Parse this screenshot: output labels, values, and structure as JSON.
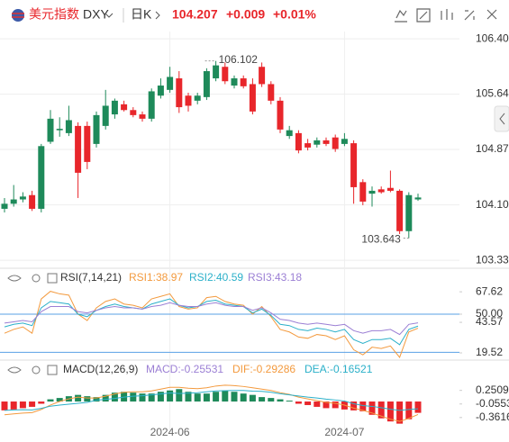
{
  "header": {
    "name": "美元指数",
    "symbol": "DXY",
    "period": "日K",
    "price": "104.207",
    "change": "+0.009",
    "change_pct": "+0.01%"
  },
  "chart_data": [
    {
      "type": "candlestick",
      "categories": [
        null,
        null,
        null,
        null,
        null,
        null,
        null,
        null,
        null,
        null,
        null,
        null,
        null,
        null,
        null,
        null,
        null,
        null,
        "2024-06",
        null,
        null,
        null,
        null,
        null,
        null,
        null,
        null,
        null,
        null,
        null,
        null,
        null,
        null,
        null,
        null,
        null,
        null,
        "2024-07",
        null,
        null,
        null,
        null,
        null,
        null,
        null,
        null
      ],
      "open": [
        104.05,
        104.12,
        104.18,
        104.24,
        104.05,
        104.98,
        105.14,
        105.1,
        105.2,
        105.2,
        104.95,
        105.2,
        105.36,
        105.5,
        105.42,
        105.36,
        105.3,
        105.62,
        105.7,
        105.86,
        105.62,
        105.55,
        105.6,
        105.86,
        106.02,
        105.76,
        105.86,
        105.78,
        106.02,
        105.78,
        105.55,
        105.06,
        105.1,
        104.96,
        104.94,
        105.0,
        105.04,
        104.95,
        104.96,
        104.42,
        104.26,
        104.32,
        104.34,
        104.3,
        103.74,
        104.18
      ],
      "high": [
        104.2,
        104.38,
        104.28,
        104.3,
        104.95,
        105.42,
        105.32,
        105.48,
        105.25,
        105.26,
        105.4,
        105.7,
        105.58,
        105.55,
        105.46,
        105.4,
        105.72,
        105.86,
        106.02,
        105.96,
        105.66,
        105.66,
        106.0,
        106.102,
        106.08,
        105.9,
        105.9,
        105.86,
        106.08,
        105.82,
        105.6,
        105.2,
        105.14,
        105.02,
        105.04,
        105.04,
        105.08,
        105.1,
        105.0,
        104.46,
        104.36,
        104.36,
        104.58,
        104.32,
        104.28,
        104.26
      ],
      "low": [
        104.0,
        104.08,
        104.14,
        104.02,
        104.0,
        104.95,
        105.05,
        105.06,
        104.2,
        104.6,
        104.9,
        105.15,
        105.3,
        105.4,
        105.32,
        105.26,
        105.26,
        105.58,
        105.66,
        105.38,
        105.4,
        105.5,
        105.56,
        105.82,
        105.78,
        105.72,
        105.72,
        105.36,
        105.74,
        105.5,
        105.1,
        105.02,
        104.82,
        104.86,
        104.9,
        104.92,
        104.84,
        104.92,
        104.12,
        104.1,
        104.08,
        104.26,
        104.28,
        103.7,
        103.643,
        104.16
      ],
      "close": [
        104.12,
        104.18,
        104.22,
        104.05,
        104.92,
        105.3,
        105.16,
        105.28,
        104.55,
        104.7,
        105.35,
        105.48,
        105.55,
        105.42,
        105.35,
        105.3,
        105.68,
        105.76,
        105.88,
        105.46,
        105.48,
        105.62,
        105.96,
        106.04,
        105.82,
        105.86,
        105.75,
        105.4,
        105.78,
        105.55,
        105.15,
        105.14,
        104.86,
        104.9,
        105.0,
        104.95,
        104.88,
        105.02,
        104.35,
        104.15,
        104.3,
        104.28,
        104.3,
        103.74,
        104.24,
        104.207
      ],
      "up_color": "#1e8a5a",
      "down_color": "#e8262b",
      "ylim": [
        103.25,
        106.51
      ],
      "yticks": [
        106.409,
        105.641,
        104.873,
        104.104,
        103.336
      ],
      "grid": true,
      "max_label": "106.102",
      "min_label": "103.643"
    },
    {
      "type": "line",
      "title": "RSI(7,14,21)",
      "series": [
        {
          "name": "RSI1:38.97",
          "color": "#f39a3e",
          "values": [
            35,
            38,
            40,
            35,
            62,
            68,
            66,
            65,
            50,
            45,
            55,
            60,
            62,
            58,
            57,
            55,
            62,
            64,
            66,
            56,
            54,
            55,
            63,
            64,
            60,
            58,
            57,
            50,
            56,
            48,
            38,
            36,
            32,
            31,
            34,
            33,
            30,
            33,
            22,
            18,
            24,
            23,
            25,
            16,
            36,
            38.97
          ]
        },
        {
          "name": "RSI2:40.59",
          "color": "#2bb0c9",
          "values": [
            40,
            42,
            43,
            41,
            55,
            60,
            59,
            58,
            50,
            48,
            53,
            56,
            58,
            56,
            55,
            54,
            58,
            60,
            62,
            57,
            55,
            56,
            60,
            61,
            58,
            57,
            56,
            51,
            54,
            49,
            42,
            41,
            38,
            37,
            39,
            38,
            36,
            38,
            30,
            27,
            30,
            30,
            31,
            26,
            38,
            40.59
          ]
        },
        {
          "name": "RSI3:43.18",
          "color": "#9b7fd4",
          "values": [
            43,
            44,
            45,
            44,
            52,
            56,
            56,
            56,
            52,
            51,
            53,
            55,
            56,
            55,
            55,
            54,
            56,
            57,
            59,
            57,
            56,
            56,
            58,
            59,
            57,
            56,
            56,
            53,
            55,
            51,
            46,
            45,
            43,
            42,
            43,
            42,
            41,
            42,
            37,
            35,
            37,
            37,
            38,
            34,
            42,
            43.18
          ]
        }
      ],
      "ylim": [
        15.27,
        71.97
      ],
      "yticks": [
        67.62,
        {
          "value": 50,
          "label": "50.00"
        },
        43.57,
        19.52
      ],
      "hlines": [
        50,
        20
      ],
      "hline_color": "#5aa0e6"
    },
    {
      "type": "combo",
      "title": "MACD(12,26,9)",
      "series": [
        {
          "name": "MACD:-0.25531",
          "type": "bar",
          "color": "#9b7fd4",
          "up_color": "#1e8a5a",
          "down_color": "#e8262b",
          "values": [
            -0.2,
            -0.18,
            -0.15,
            -0.12,
            -0.05,
            0.05,
            0.08,
            0.12,
            0.15,
            0.12,
            0.1,
            0.15,
            0.2,
            0.22,
            0.2,
            0.18,
            0.18,
            0.22,
            0.25,
            0.28,
            0.22,
            0.18,
            0.18,
            0.22,
            0.25,
            0.22,
            0.18,
            0.15,
            0.1,
            0.08,
            0.05,
            0.02,
            -0.05,
            -0.08,
            -0.12,
            -0.15,
            -0.15,
            -0.18,
            -0.2,
            -0.22,
            -0.3,
            -0.38,
            -0.45,
            -0.5,
            -0.4,
            -0.25531
          ]
        },
        {
          "name": "DIF:-0.29286",
          "type": "line",
          "color": "#f39a3e",
          "values": [
            -0.3,
            -0.28,
            -0.26,
            -0.25,
            -0.18,
            -0.08,
            0.0,
            0.06,
            0.1,
            0.08,
            0.08,
            0.12,
            0.17,
            0.21,
            0.22,
            0.22,
            0.24,
            0.28,
            0.32,
            0.32,
            0.3,
            0.29,
            0.31,
            0.35,
            0.37,
            0.36,
            0.34,
            0.31,
            0.28,
            0.25,
            0.2,
            0.16,
            0.1,
            0.06,
            0.02,
            -0.02,
            -0.04,
            -0.08,
            -0.15,
            -0.2,
            -0.26,
            -0.33,
            -0.4,
            -0.45,
            -0.38,
            -0.29286
          ]
        },
        {
          "name": "DEA:-0.16521",
          "type": "line",
          "color": "#2bb0c9",
          "values": [
            -0.2,
            -0.19,
            -0.185,
            -0.19,
            -0.155,
            -0.105,
            -0.08,
            -0.06,
            -0.04,
            -0.02,
            0.03,
            0.05,
            0.07,
            0.1,
            0.12,
            0.13,
            0.15,
            0.17,
            0.195,
            0.18,
            0.19,
            0.2,
            0.22,
            0.24,
            0.245,
            0.25,
            0.25,
            0.235,
            0.23,
            0.21,
            0.175,
            0.15,
            0.125,
            0.1,
            0.08,
            0.055,
            0.035,
            0.01,
            -0.05,
            -0.09,
            -0.11,
            -0.14,
            -0.175,
            -0.2,
            -0.18,
            -0.16521
          ]
        }
      ],
      "ylim": [
        -0.65,
        0.57
      ],
      "yticks": [
        0.25097,
        -0.05536,
        -0.36169
      ]
    }
  ]
}
